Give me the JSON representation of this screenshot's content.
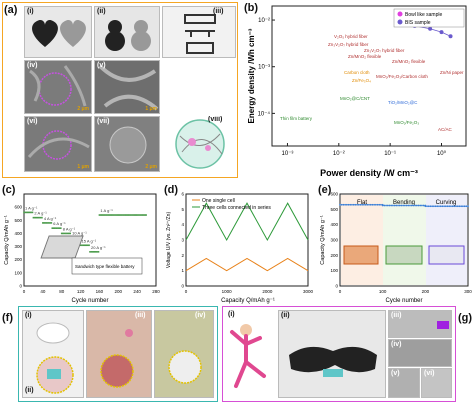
{
  "panels": {
    "a": {
      "label": "(a)",
      "sublabels": [
        "(i)",
        "(ii)",
        "(iii)",
        "(iv)",
        "(v)",
        "(vi)",
        "(vii)",
        "(viii)"
      ],
      "scale_bars": [
        "2 μm",
        "1 μm",
        "1 μm",
        "2 μm"
      ]
    },
    "b": {
      "label": "(b)",
      "annotations": [
        "V₂O₅ hybrid fiber",
        "Zn₃V₂O₇ hybrid fiber",
        "Zn₃V₂O₇ hybrid fiber",
        "Zn/MnO₂ flexible",
        "Zn/MnO₂ flexible",
        "Carbon cloth",
        "Zn/Fe₃O₄",
        "MnO₂/Fe₂O₃/Carbon cloth",
        "MnO₂@C/CNT",
        "TiO₂/MnO₂@C",
        "MnO₂/Fe₂O₃",
        "Zn/Ni paper",
        "AC/AC",
        "Thin film battery"
      ],
      "chart_data": {
        "type": "scatter",
        "xlabel": "Power density /W cm⁻³",
        "ylabel": "Energy density /Wh cm⁻³",
        "xscale": "log",
        "yscale": "log",
        "xlim": [
          0.0005,
          3
        ],
        "ylim": [
          2e-05,
          0.02
        ],
        "xticks": [
          "10⁻³",
          "10⁻²",
          "10⁻¹",
          "10⁰"
        ],
        "yticks": [
          "10⁻⁴",
          "10⁻³",
          "10⁻²"
        ],
        "legend": {
          "position": "top-right",
          "entries": [
            "Bowl like sample",
            "BIS sample"
          ]
        },
        "series": [
          {
            "name": "Bowl like sample",
            "color": "#e040e0",
            "points": [
              [
                0.15,
                0.013
              ],
              [
                0.3,
                0.012
              ],
              [
                0.6,
                0.011
              ],
              [
                1.0,
                0.0095
              ],
              [
                1.5,
                0.008
              ]
            ]
          },
          {
            "name": "BIS sample",
            "color": "#6a5acd",
            "points": [
              [
                0.15,
                0.0085
              ],
              [
                0.3,
                0.0075
              ],
              [
                0.6,
                0.0065
              ],
              [
                1.0,
                0.0055
              ],
              [
                1.5,
                0.0045
              ]
            ]
          }
        ]
      }
    },
    "c": {
      "label": "(c)",
      "inset_text": "Sandwich type flexible battery",
      "rate_labels": [
        "1 A g⁻¹",
        "2 A g⁻¹",
        "4 A g⁻¹",
        "6 A g⁻¹",
        "8 A g⁻¹",
        "10 A g⁻¹",
        "15 A g⁻¹",
        "20 A g⁻¹",
        "1 A g⁻¹"
      ],
      "chart_data": {
        "type": "scatter",
        "xlabel": "Cycle number",
        "ylabel": "Capacity Q/mAh g⁻¹",
        "xlim": [
          0,
          280
        ],
        "ylim": [
          0,
          700
        ],
        "xticks": [
          0,
          40,
          80,
          120,
          160,
          200,
          240,
          280
        ],
        "yticks": [
          0,
          100,
          200,
          300,
          400,
          500,
          600
        ],
        "segments": [
          {
            "x": [
              0,
              20
            ],
            "y": 560
          },
          {
            "x": [
              20,
              40
            ],
            "y": 520
          },
          {
            "x": [
              40,
              60
            ],
            "y": 480
          },
          {
            "x": [
              60,
              80
            ],
            "y": 440
          },
          {
            "x": [
              80,
              100
            ],
            "y": 400
          },
          {
            "x": [
              100,
              120
            ],
            "y": 370
          },
          {
            "x": [
              120,
              140
            ],
            "y": 310
          },
          {
            "x": [
              140,
              160
            ],
            "y": 260
          },
          {
            "x": [
              160,
              260
            ],
            "y": 540
          }
        ]
      }
    },
    "d": {
      "label": "(d)",
      "chart_data": {
        "type": "line",
        "xlabel": "Capacity Q/mAh g⁻¹",
        "ylabel": "Voltage U/V (vs. Zn²⁺/Zn)",
        "xlim": [
          0,
          3000
        ],
        "ylim": [
          0,
          6
        ],
        "xticks": [
          0,
          1000,
          2000,
          3000
        ],
        "yticks": [
          0,
          1,
          2,
          3,
          4,
          5,
          6
        ],
        "legend": {
          "position": "top-left"
        },
        "series": [
          {
            "name": "One single cell",
            "color": "#e8821a",
            "x": [
              0,
              500,
              1000,
              1500,
              2000,
              2500,
              3000
            ],
            "y": [
              1.0,
              1.8,
              1.0,
              1.8,
              1.0,
              1.8,
              1.0
            ]
          },
          {
            "name": "Three cells connected in series",
            "color": "#2e9a3a",
            "x": [
              0,
              500,
              1000,
              1500,
              2000,
              2500,
              3000
            ],
            "y": [
              3.0,
              5.4,
              3.0,
              5.4,
              3.0,
              5.4,
              3.0
            ]
          }
        ]
      }
    },
    "e": {
      "label": "(e)",
      "conditions": [
        "Flat",
        "Bending",
        "Curving"
      ],
      "chart_data": {
        "type": "scatter",
        "xlabel": "Cycle number",
        "ylabel": "Capacity Q/mAh g⁻¹",
        "xlim": [
          0,
          300
        ],
        "ylim": [
          0,
          600
        ],
        "xticks": [
          0,
          100,
          200,
          300
        ],
        "yticks": [
          0,
          100,
          200,
          300,
          400,
          500,
          600
        ],
        "series": [
          {
            "name": "Flat",
            "color": "#3a7fd8",
            "x": [
              0,
              100
            ],
            "y": 530
          },
          {
            "name": "Bending",
            "color": "#3a7fd8",
            "x": [
              100,
              200
            ],
            "y": 525
          },
          {
            "name": "Curving",
            "color": "#3a7fd8",
            "x": [
              200,
              300
            ],
            "y": 520
          }
        ]
      }
    },
    "f": {
      "label": "(f)",
      "sublabels": [
        "(i)",
        "(ii)",
        "(iii)",
        "(iv)"
      ]
    },
    "g": {
      "label": "(g)",
      "sublabels": [
        "(i)",
        "(ii)",
        "(iii)",
        "(iv)",
        "(v)",
        "(vi)"
      ]
    }
  },
  "colors": {
    "frame_a": "#f5a623",
    "frame_f": "#3ab7b0",
    "frame_g": "#d64fd6"
  }
}
